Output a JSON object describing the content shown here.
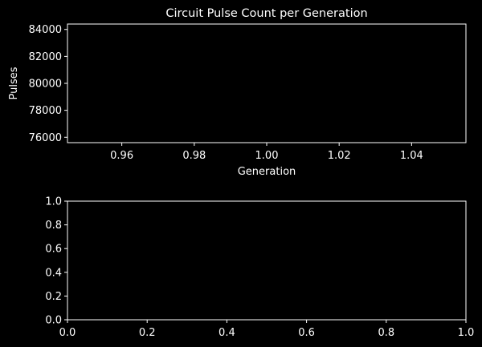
{
  "chart_data": [
    {
      "type": "line",
      "title": "Circuit Pulse Count per Generation",
      "xlabel": "Generation",
      "ylabel": "Pulses",
      "xlim": [
        0.945,
        1.055
      ],
      "ylim": [
        75600,
        84400
      ],
      "xticks": [
        0.96,
        0.98,
        1.0,
        1.02,
        1.04
      ],
      "xtick_labels": [
        "0.96",
        "0.98",
        "1.00",
        "1.02",
        "1.04"
      ],
      "yticks": [
        76000,
        78000,
        80000,
        82000,
        84000
      ],
      "ytick_labels": [
        "76000",
        "78000",
        "80000",
        "82000",
        "84000"
      ],
      "series": [],
      "grid": false
    },
    {
      "type": "line",
      "title": "",
      "xlabel": "",
      "ylabel": "",
      "xlim": [
        0,
        1
      ],
      "ylim": [
        0,
        1
      ],
      "xticks": [
        0,
        0.2,
        0.4,
        0.6,
        0.8,
        1.0
      ],
      "xtick_labels": [
        "0.0",
        "0.2",
        "0.4",
        "0.6",
        "0.8",
        "1.0"
      ],
      "yticks": [
        0,
        0.2,
        0.4,
        0.6,
        0.8,
        1.0
      ],
      "ytick_labels": [
        "0.0",
        "0.2",
        "0.4",
        "0.6",
        "0.8",
        "1.0"
      ],
      "series": [],
      "grid": false
    }
  ],
  "colors": {
    "background": "#000000",
    "foreground": "#ffffff"
  }
}
